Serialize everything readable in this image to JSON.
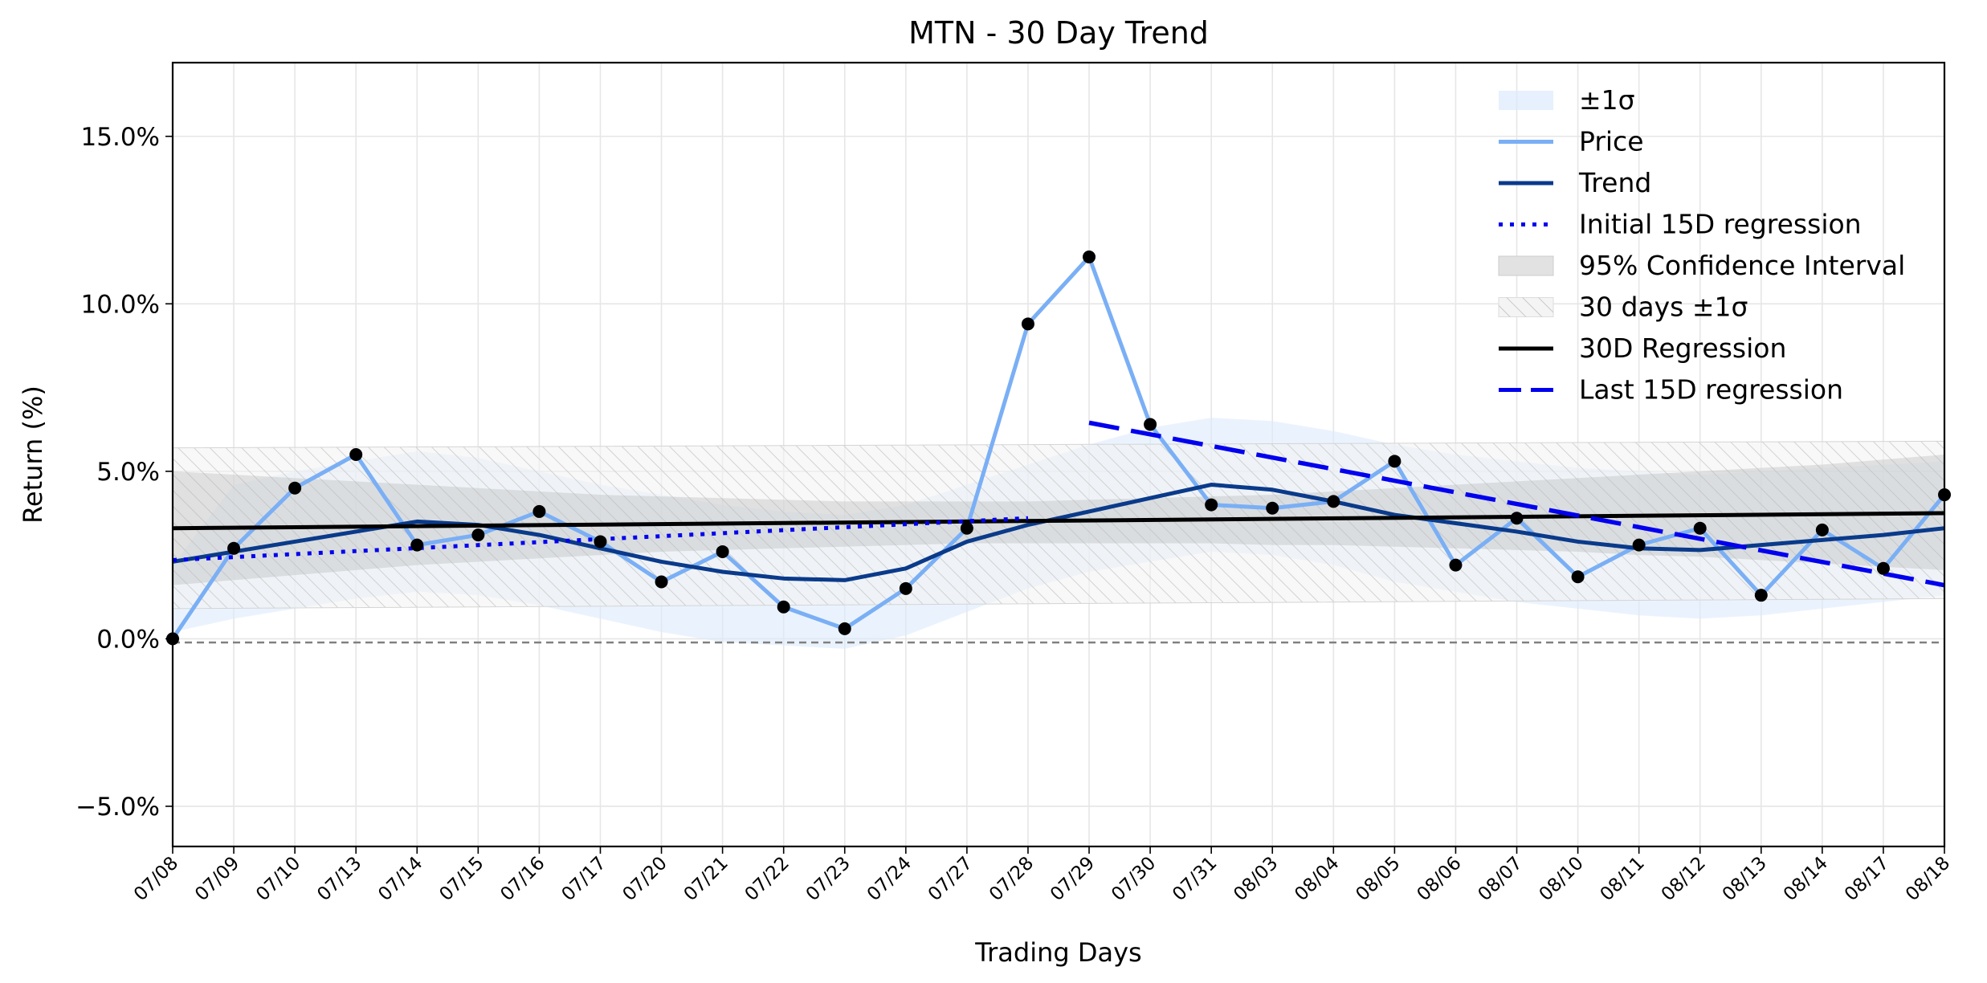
{
  "chart_data": {
    "type": "line",
    "title": "MTN - 30 Day Trend",
    "xlabel": "Trading Days",
    "ylabel": "Return (%)",
    "ylim": [
      -6.2,
      17.2
    ],
    "yticks": [
      -5,
      0,
      5,
      10,
      15
    ],
    "ytick_labels": [
      "−5.0%",
      "0.0%",
      "5.0%",
      "10.0%",
      "15.0%"
    ],
    "grid": true,
    "legend_position": "top-right",
    "categories": [
      "07/08",
      "07/09",
      "07/10",
      "07/13",
      "07/14",
      "07/15",
      "07/16",
      "07/17",
      "07/20",
      "07/21",
      "07/22",
      "07/23",
      "07/24",
      "07/27",
      "07/28",
      "07/29",
      "07/30",
      "07/31",
      "08/03",
      "08/04",
      "08/05",
      "08/06",
      "08/07",
      "08/10",
      "08/11",
      "08/12",
      "08/13",
      "08/14",
      "08/17",
      "08/18"
    ],
    "series": [
      {
        "name": "Price",
        "color": "#7aaff5",
        "values": [
          0.0,
          2.7,
          4.5,
          5.5,
          2.8,
          3.1,
          3.8,
          2.9,
          1.7,
          2.6,
          0.95,
          0.3,
          1.5,
          3.3,
          9.4,
          11.4,
          6.4,
          4.0,
          3.9,
          4.1,
          5.3,
          2.2,
          3.6,
          1.85,
          2.8,
          3.3,
          1.3,
          3.25,
          2.1,
          4.3
        ]
      },
      {
        "name": "Trend",
        "color": "#0a3a8a",
        "values": [
          2.3,
          2.6,
          2.9,
          3.2,
          3.5,
          3.4,
          3.1,
          2.7,
          2.3,
          2.0,
          1.8,
          1.75,
          2.1,
          2.9,
          3.4,
          3.8,
          4.2,
          4.6,
          4.45,
          4.1,
          3.7,
          3.45,
          3.2,
          2.9,
          2.7,
          2.65,
          2.8,
          2.95,
          3.1,
          3.3
        ]
      },
      {
        "name": "Initial 15D regression",
        "color": "#0000ee",
        "style": "dotted",
        "x": [
          "07/08",
          "07/28"
        ],
        "values": [
          2.35,
          3.6
        ]
      },
      {
        "name": "30D Regression",
        "color": "#000000",
        "x": [
          "07/08",
          "08/18"
        ],
        "values": [
          3.3,
          3.75
        ]
      },
      {
        "name": "Last 15D regression",
        "color": "#0000ee",
        "style": "dashed",
        "x": [
          "07/29",
          "08/18"
        ],
        "values": [
          6.45,
          1.6
        ]
      }
    ],
    "bands": [
      {
        "name": "±1σ",
        "color": "#dcebfc",
        "upper": [
          2.2,
          4.6,
          5.0,
          5.3,
          5.6,
          5.4,
          5.0,
          4.6,
          4.3,
          4.0,
          3.8,
          3.7,
          4.0,
          4.6,
          5.2,
          5.8,
          6.3,
          6.6,
          6.5,
          6.2,
          5.8,
          5.5,
          5.3,
          5.1,
          5.0,
          4.9,
          5.0,
          5.1,
          5.2,
          5.3
        ],
        "lower": [
          0.2,
          0.6,
          0.9,
          1.2,
          1.4,
          1.3,
          1.0,
          0.6,
          0.2,
          -0.1,
          -0.2,
          -0.3,
          0.1,
          0.8,
          1.5,
          2.0,
          2.3,
          2.6,
          2.5,
          2.2,
          1.7,
          1.4,
          1.1,
          0.9,
          0.7,
          0.6,
          0.7,
          0.9,
          1.1,
          1.3
        ]
      },
      {
        "name": "95% Confidence Interval",
        "color": "#b4b4b4",
        "upper": [
          5.0,
          4.9,
          4.8,
          4.7,
          4.6,
          4.5,
          4.4,
          4.3,
          4.25,
          4.2,
          4.15,
          4.1,
          4.1,
          4.1,
          4.1,
          4.15,
          4.2,
          4.25,
          4.3,
          4.4,
          4.5,
          4.6,
          4.7,
          4.8,
          4.9,
          5.0,
          5.1,
          5.2,
          5.35,
          5.5
        ],
        "lower": [
          1.6,
          1.75,
          1.9,
          2.05,
          2.2,
          2.3,
          2.4,
          2.5,
          2.6,
          2.65,
          2.7,
          2.75,
          2.8,
          2.85,
          2.85,
          2.85,
          2.85,
          2.85,
          2.8,
          2.8,
          2.75,
          2.7,
          2.65,
          2.6,
          2.5,
          2.45,
          2.35,
          2.25,
          2.15,
          2.05
        ]
      },
      {
        "name": "30 days ±1σ",
        "color": "#bbbbbb",
        "hatch": true,
        "upper": [
          5.7,
          5.9
        ],
        "lower": [
          0.9,
          1.2
        ]
      }
    ],
    "legend": [
      "±1σ",
      "Price",
      "Trend",
      "Initial 15D regression",
      "95% Confidence Interval",
      "30 days ±1σ",
      "30D Regression",
      "Last 15D regression"
    ]
  }
}
